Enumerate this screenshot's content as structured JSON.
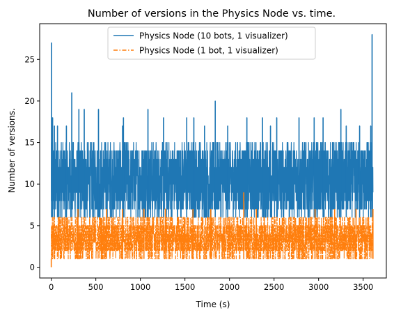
{
  "chart_data": {
    "type": "line",
    "title": "Number of versions in the Physics Node vs. time.",
    "xlabel": "Time (s)",
    "ylabel": "Number of versions.",
    "xlim": [
      -130,
      3760
    ],
    "ylim": [
      -1.3,
      29.3
    ],
    "xticks": [
      0,
      500,
      1000,
      1500,
      2000,
      2500,
      3000,
      3500
    ],
    "yticks": [
      0,
      5,
      10,
      15,
      20,
      25
    ],
    "grid": false,
    "legend_position": "top-center",
    "series": [
      {
        "name": "Physics Node (10 bots, 1 visualizer)",
        "color": "#1f77b4",
        "line_style": "solid",
        "typical_min": 6,
        "typical_max": 15,
        "band_x_range": [
          0,
          3610
        ],
        "spikes": [
          {
            "x": 2,
            "y": 27
          },
          {
            "x": 15,
            "y": 18
          },
          {
            "x": 35,
            "y": 17
          },
          {
            "x": 70,
            "y": 17
          },
          {
            "x": 170,
            "y": 17
          },
          {
            "x": 230,
            "y": 21
          },
          {
            "x": 310,
            "y": 19
          },
          {
            "x": 370,
            "y": 19
          },
          {
            "x": 530,
            "y": 19
          },
          {
            "x": 800,
            "y": 17
          },
          {
            "x": 810,
            "y": 18
          },
          {
            "x": 1085,
            "y": 19
          },
          {
            "x": 1260,
            "y": 18
          },
          {
            "x": 1520,
            "y": 18
          },
          {
            "x": 1600,
            "y": 18
          },
          {
            "x": 1720,
            "y": 17
          },
          {
            "x": 1840,
            "y": 20
          },
          {
            "x": 1980,
            "y": 17
          },
          {
            "x": 2195,
            "y": 18
          },
          {
            "x": 2370,
            "y": 18
          },
          {
            "x": 2460,
            "y": 17
          },
          {
            "x": 2530,
            "y": 18
          },
          {
            "x": 2780,
            "y": 18
          },
          {
            "x": 2950,
            "y": 18
          },
          {
            "x": 3050,
            "y": 18
          },
          {
            "x": 3250,
            "y": 19
          },
          {
            "x": 3310,
            "y": 17
          },
          {
            "x": 3460,
            "y": 17
          },
          {
            "x": 3585,
            "y": 17
          },
          {
            "x": 3600,
            "y": 28
          }
        ]
      },
      {
        "name": "Physics Node (1 bot, 1 visualizer)",
        "color": "#ff7f0e",
        "line_style": "dashdot",
        "typical_min": 1,
        "typical_max": 6,
        "band_x_range": [
          0,
          3610
        ],
        "spikes": [
          {
            "x": 0,
            "y": 0
          },
          {
            "x": 300,
            "y": 7
          },
          {
            "x": 620,
            "y": 7
          },
          {
            "x": 800,
            "y": 7
          },
          {
            "x": 1040,
            "y": 7
          },
          {
            "x": 1280,
            "y": 7
          },
          {
            "x": 1590,
            "y": 7
          },
          {
            "x": 1790,
            "y": 7
          },
          {
            "x": 2160,
            "y": 9
          },
          {
            "x": 2300,
            "y": 7
          },
          {
            "x": 2960,
            "y": 7
          },
          {
            "x": 3180,
            "y": 7
          },
          {
            "x": 3420,
            "y": 7
          },
          {
            "x": 3610,
            "y": 7
          }
        ]
      }
    ]
  }
}
